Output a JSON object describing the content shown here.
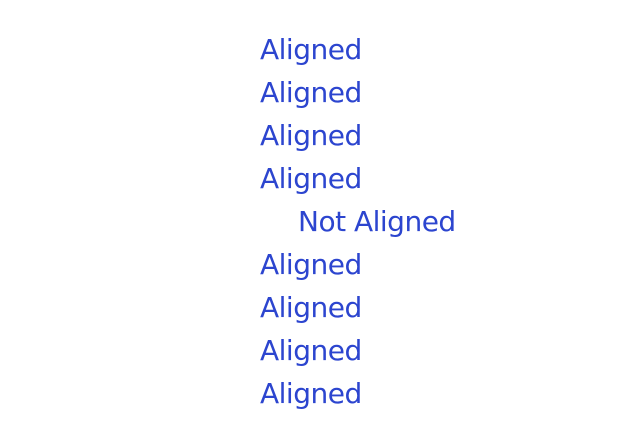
{
  "accent_color": "#2c45cf",
  "labels": [
    {
      "text": "Aligned",
      "aligned": true
    },
    {
      "text": "Aligned",
      "aligned": true
    },
    {
      "text": "Aligned",
      "aligned": true
    },
    {
      "text": "Aligned",
      "aligned": true
    },
    {
      "text": "Not Aligned",
      "aligned": false
    },
    {
      "text": "Aligned",
      "aligned": true
    },
    {
      "text": "Aligned",
      "aligned": true
    },
    {
      "text": "Aligned",
      "aligned": true
    },
    {
      "text": "Aligned",
      "aligned": true
    }
  ]
}
